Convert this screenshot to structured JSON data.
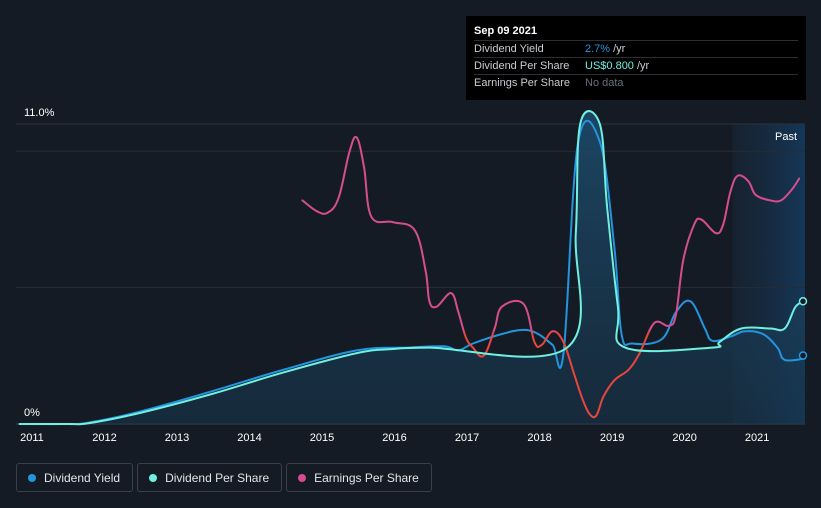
{
  "tooltip": {
    "date": "Sep 09 2021",
    "rows": [
      {
        "label": "Dividend Yield",
        "value": "2.7%",
        "unit": "/yr"
      },
      {
        "label": "Dividend Per Share",
        "value": "US$0.800",
        "unit": "/yr"
      },
      {
        "label": "Earnings Per Share",
        "value": "No data",
        "unit": ""
      }
    ]
  },
  "legend": [
    {
      "label": "Dividend Yield",
      "color": "#2394df"
    },
    {
      "label": "Dividend Per Share",
      "color": "#6ff0e0"
    },
    {
      "label": "Earnings Per Share",
      "color": "#d64d8e"
    }
  ],
  "chart_data": {
    "type": "line",
    "y_labels": [
      "11.0%",
      "0%"
    ],
    "past_label": "Past",
    "x_ticks": [
      "2011",
      "2012",
      "2013",
      "2014",
      "2015",
      "2016",
      "2017",
      "2018",
      "2019",
      "2020",
      "2021"
    ],
    "xlim": [
      2010.8,
      2021.68
    ],
    "ylim": [
      0,
      11.0
    ],
    "past_start": 2020.68,
    "series": [
      {
        "name": "Dividend Yield",
        "color": "#2394df",
        "points": [
          [
            2010.85,
            0
          ],
          [
            2011.5,
            0
          ],
          [
            2011.8,
            0.05
          ],
          [
            2012.5,
            0.45
          ],
          [
            2013.5,
            1.2
          ],
          [
            2014.5,
            2.0
          ],
          [
            2015.5,
            2.7
          ],
          [
            2016.2,
            2.8
          ],
          [
            2016.7,
            2.85
          ],
          [
            2016.9,
            2.7
          ],
          [
            2017.1,
            2.95
          ],
          [
            2017.5,
            3.3
          ],
          [
            2017.8,
            3.45
          ],
          [
            2018.0,
            3.3
          ],
          [
            2018.2,
            2.9
          ],
          [
            2018.35,
            2.6
          ],
          [
            2018.55,
            10.3
          ],
          [
            2018.85,
            10.35
          ],
          [
            2019.05,
            6.5
          ],
          [
            2019.15,
            3.3
          ],
          [
            2019.3,
            2.95
          ],
          [
            2019.7,
            3.1
          ],
          [
            2019.9,
            4.1
          ],
          [
            2020.1,
            4.5
          ],
          [
            2020.3,
            3.5
          ],
          [
            2020.4,
            3.05
          ],
          [
            2020.65,
            3.2
          ],
          [
            2020.85,
            3.4
          ],
          [
            2021.1,
            3.3
          ],
          [
            2021.3,
            2.8
          ],
          [
            2021.4,
            2.35
          ],
          [
            2021.68,
            2.4
          ]
        ]
      },
      {
        "name": "Dividend Per Share",
        "color": "#6ff0e0",
        "points": [
          [
            2010.85,
            0
          ],
          [
            2011.5,
            0
          ],
          [
            2011.8,
            0.03
          ],
          [
            2012.5,
            0.4
          ],
          [
            2013.5,
            1.1
          ],
          [
            2014.5,
            1.9
          ],
          [
            2015.5,
            2.6
          ],
          [
            2016.0,
            2.75
          ],
          [
            2016.5,
            2.8
          ],
          [
            2018.4,
            2.8
          ],
          [
            2018.52,
            7.0
          ],
          [
            2018.58,
            11.0
          ],
          [
            2018.85,
            11.0
          ],
          [
            2018.95,
            8.0
          ],
          [
            2019.1,
            4.3
          ],
          [
            2019.2,
            2.8
          ],
          [
            2020.4,
            2.8
          ],
          [
            2020.5,
            3.0
          ],
          [
            2020.8,
            3.5
          ],
          [
            2021.2,
            3.5
          ],
          [
            2021.4,
            3.5
          ],
          [
            2021.55,
            4.3
          ],
          [
            2021.68,
            4.5
          ]
        ]
      },
      {
        "name": "Earnings Per Share",
        "color": "#d64d8e",
        "points": [
          [
            2014.75,
            8.2
          ],
          [
            2014.95,
            7.8
          ],
          [
            2015.1,
            7.75
          ],
          [
            2015.25,
            8.3
          ],
          [
            2015.4,
            10.0
          ],
          [
            2015.5,
            10.5
          ],
          [
            2015.6,
            9.4
          ],
          [
            2015.7,
            7.6
          ],
          [
            2016.0,
            7.4
          ],
          [
            2016.3,
            7.1
          ],
          [
            2016.45,
            5.6
          ],
          [
            2016.5,
            4.5
          ],
          [
            2016.6,
            4.3
          ],
          [
            2016.8,
            4.8
          ],
          [
            2016.9,
            4.1
          ],
          [
            2017.0,
            3.2
          ],
          [
            2017.1,
            2.8
          ],
          [
            2017.25,
            2.5
          ],
          [
            2017.4,
            3.5
          ],
          [
            2017.5,
            4.3
          ],
          [
            2017.8,
            4.4
          ],
          [
            2017.95,
            3.0
          ],
          [
            2018.05,
            2.9
          ],
          [
            2018.2,
            3.4
          ],
          [
            2018.35,
            3.0
          ],
          [
            2018.5,
            1.8
          ],
          [
            2018.6,
            1.0
          ],
          [
            2018.7,
            0.4
          ],
          [
            2018.8,
            0.3
          ],
          [
            2018.9,
            1.0
          ],
          [
            2019.05,
            1.6
          ],
          [
            2019.25,
            2.0
          ],
          [
            2019.4,
            2.6
          ],
          [
            2019.6,
            3.7
          ],
          [
            2019.8,
            3.6
          ],
          [
            2019.9,
            4.0
          ],
          [
            2020.0,
            6.0
          ],
          [
            2020.15,
            7.3
          ],
          [
            2020.25,
            7.5
          ],
          [
            2020.45,
            7.0
          ],
          [
            2020.55,
            7.3
          ],
          [
            2020.65,
            8.5
          ],
          [
            2020.75,
            9.1
          ],
          [
            2020.9,
            8.9
          ],
          [
            2021.0,
            8.4
          ],
          [
            2021.2,
            8.2
          ],
          [
            2021.35,
            8.2
          ],
          [
            2021.5,
            8.6
          ],
          [
            2021.6,
            9.0
          ]
        ]
      }
    ]
  }
}
